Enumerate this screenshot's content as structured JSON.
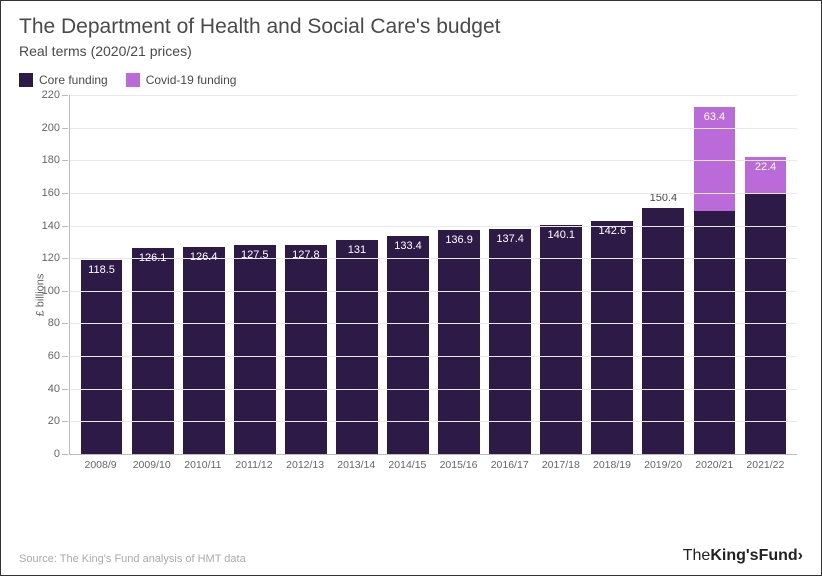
{
  "title": "The Department of Health and Social Care's budget",
  "subtitle": "Real terms (2020/21 prices)",
  "chart": {
    "type": "bar",
    "ylabel": "£ billions",
    "ylim": [
      0,
      220
    ],
    "ytick_step": 20,
    "background_color": "#ffffff",
    "grid_color": "#e8e8e8",
    "axis_color": "#bbbbbb",
    "text_color": "#4a4a4a",
    "title_fontsize": 21,
    "subtitle_fontsize": 14,
    "label_fontsize": 11,
    "bar_width": 0.82,
    "legend": [
      {
        "label": "Core funding",
        "color": "#2e1a47"
      },
      {
        "label": "Covid-19 funding",
        "color": "#bb6bd9"
      }
    ],
    "categories": [
      "2008/9",
      "2009/10",
      "2010/11",
      "2011/12",
      "2012/13",
      "2013/14",
      "2014/15",
      "2015/16",
      "2016/17",
      "2017/18",
      "2018/19",
      "2019/20",
      "2020/21",
      "2021/22"
    ],
    "series": {
      "core": [
        118.5,
        126.1,
        126.4,
        127.5,
        127.8,
        131,
        133.4,
        136.9,
        137.4,
        140.1,
        142.6,
        150.4,
        148.7,
        159
      ],
      "covid": [
        0,
        0,
        0,
        0,
        0,
        0,
        0,
        0,
        0,
        0,
        0,
        0,
        63.4,
        22.4
      ]
    },
    "colors": {
      "core": "#2e1a47",
      "covid": "#bb6bd9"
    },
    "core_label_mode": [
      "inside",
      "inside",
      "inside",
      "inside",
      "inside",
      "inside",
      "inside",
      "inside",
      "inside",
      "inside",
      "inside",
      "above",
      "above",
      "above"
    ]
  },
  "source": "Source: The King's Fund analysis of HMT data",
  "brand": {
    "pre": "The",
    "bold": "King'sFund"
  }
}
